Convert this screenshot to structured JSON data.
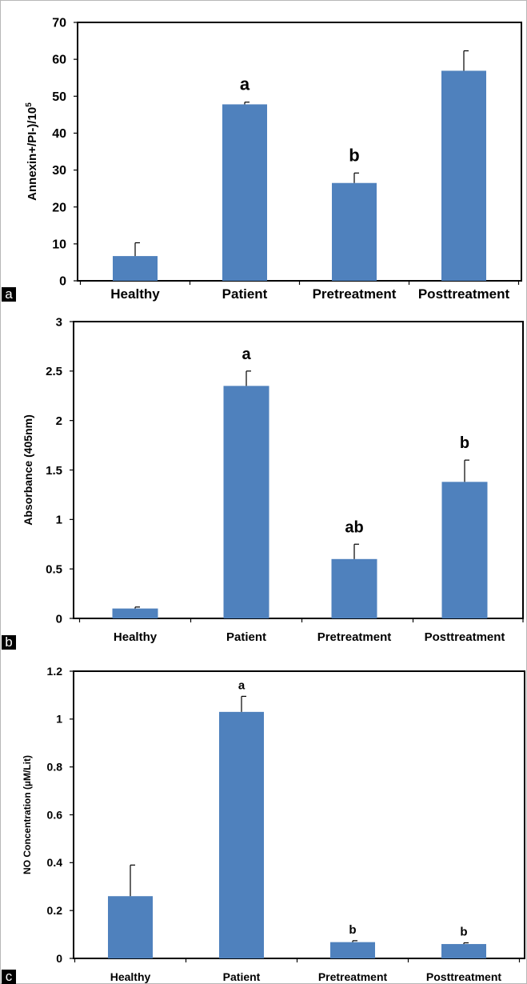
{
  "figure": {
    "colors": {
      "bar": "#4f81bd",
      "frame": "#000000",
      "text": "#000000"
    }
  },
  "chart_data": [
    {
      "panel_label": "a",
      "type": "bar",
      "title": "",
      "xlabel": "",
      "ylabel": "Annexin+/PI-)/10",
      "ylabel_superscript": "5",
      "categories": [
        "Healthy",
        "Patient",
        "Pretreatment",
        "Posttreatment"
      ],
      "values": [
        6.7,
        47.8,
        26.5,
        56.9
      ],
      "errors": [
        3.6,
        0.6,
        2.7,
        5.4
      ],
      "annotations": [
        "",
        "a",
        "b",
        ""
      ],
      "ylim": [
        0,
        70
      ],
      "yticks": [
        0,
        10,
        20,
        30,
        40,
        50,
        60,
        70
      ],
      "ytick_labels": [
        "0",
        "10",
        "20",
        "30",
        "40",
        "50",
        "60",
        "70"
      ],
      "grid": false,
      "legend": "none"
    },
    {
      "panel_label": "b",
      "type": "bar",
      "title": "",
      "xlabel": "",
      "ylabel": "Absorbance (405nm)",
      "ylabel_superscript": "",
      "categories": [
        "Healthy",
        "Patient",
        "Pretreatment",
        "Posttreatment"
      ],
      "values": [
        0.1,
        2.35,
        0.6,
        1.38
      ],
      "errors": [
        0.015,
        0.15,
        0.15,
        0.22
      ],
      "annotations": [
        "",
        "a",
        "ab",
        "b"
      ],
      "ylim": [
        0,
        3
      ],
      "yticks": [
        0,
        0.5,
        1,
        1.5,
        2,
        2.5,
        3
      ],
      "ytick_labels": [
        "0",
        "0.5",
        "1",
        "1.5",
        "2",
        "2.5",
        "3"
      ],
      "grid": false,
      "legend": "none"
    },
    {
      "panel_label": "c",
      "type": "bar",
      "title": "",
      "xlabel": "",
      "ylabel": "NO Concentration (µM/Lit)",
      "ylabel_superscript": "",
      "categories": [
        "Healthy",
        "Patient",
        "Pretreatment",
        "Posttreatment"
      ],
      "values": [
        0.26,
        1.03,
        0.068,
        0.06
      ],
      "errors": [
        0.13,
        0.065,
        0.006,
        0.005
      ],
      "annotations": [
        "",
        "a",
        "b",
        "b"
      ],
      "ylim": [
        0,
        1.2
      ],
      "yticks": [
        0,
        0.2,
        0.4,
        0.6,
        0.8,
        1,
        1.2
      ],
      "ytick_labels": [
        "0",
        "0.2",
        "0.4",
        "0.6",
        "0.8",
        "1",
        "1.2"
      ],
      "grid": false,
      "legend": "none"
    }
  ]
}
